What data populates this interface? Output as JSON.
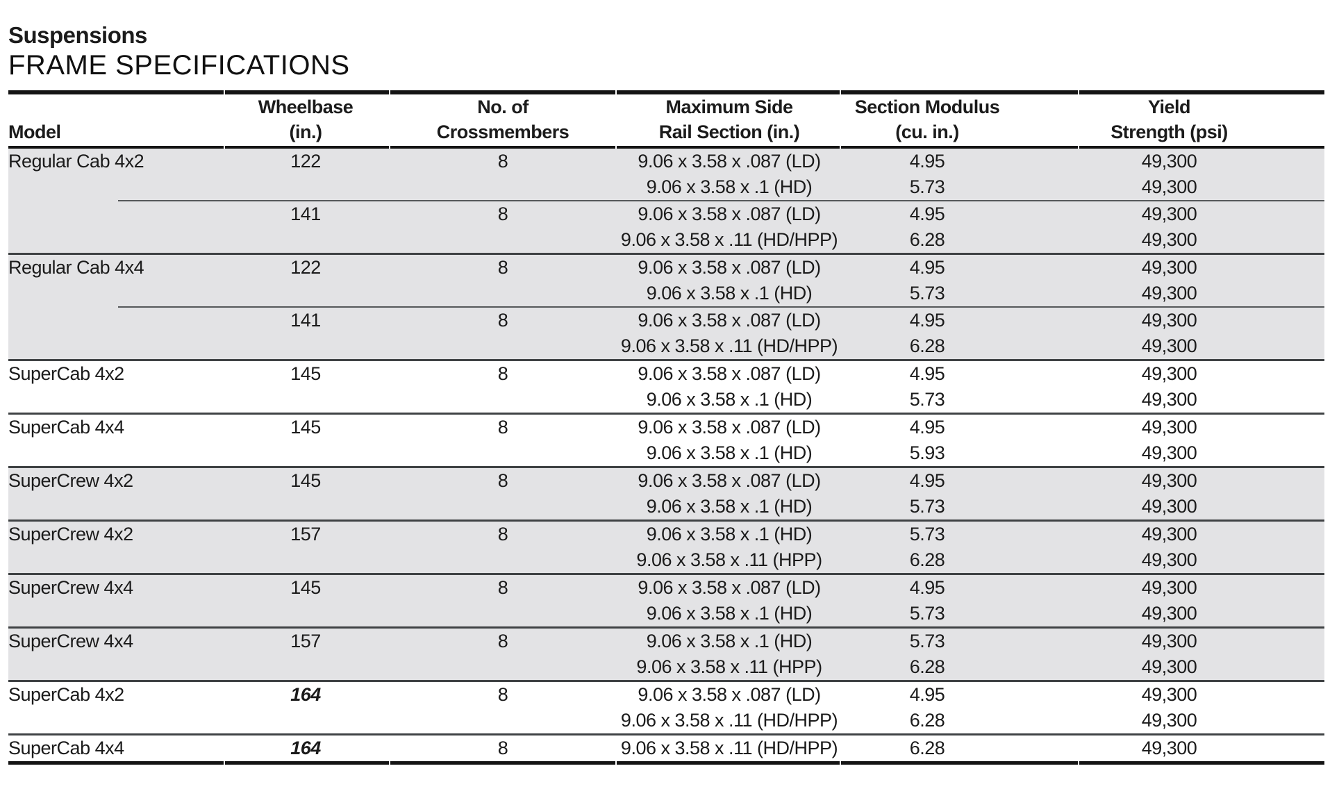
{
  "page": {
    "title": "Suspensions",
    "subtitle": "FRAME SPECIFICATIONS"
  },
  "table": {
    "headers": {
      "model": "Model",
      "wheelbase": [
        "Wheelbase",
        "(in.)"
      ],
      "crossmembers": [
        "No. of",
        "Crossmembers"
      ],
      "rail": [
        "Maximum Side",
        "Rail Section (in.)"
      ],
      "modulus": [
        "Section Modulus",
        "(cu. in.)"
      ],
      "yield": [
        "Yield",
        "Strength (psi)"
      ]
    },
    "colors": {
      "shaded_row": "#e3e3e5",
      "divider_line": "#55585a",
      "thick_rule": "#141414",
      "text": "#1b1b1b"
    },
    "groups": [
      {
        "model": "Regular Cab 4x2",
        "shaded": true,
        "subrows": [
          {
            "wheelbase": "122",
            "crossmembers": "8",
            "lines": [
              {
                "rail": "9.06 x 3.58 x .087 (LD)",
                "modulus": "4.95",
                "yield": "49,300"
              },
              {
                "rail": "9.06 x 3.58 x .1 (HD)",
                "modulus": "5.73",
                "yield": "49,300"
              }
            ]
          },
          {
            "wheelbase": "141",
            "crossmembers": "8",
            "lines": [
              {
                "rail": "9.06 x 3.58 x .087 (LD)",
                "modulus": "4.95",
                "yield": "49,300"
              },
              {
                "rail": "9.06 x 3.58 x .11 (HD/HPP)",
                "modulus": "6.28",
                "yield": "49,300"
              }
            ]
          }
        ]
      },
      {
        "model": "Regular Cab 4x4",
        "shaded": true,
        "subrows": [
          {
            "wheelbase": "122",
            "crossmembers": "8",
            "lines": [
              {
                "rail": "9.06 x 3.58 x .087 (LD)",
                "modulus": "4.95",
                "yield": "49,300"
              },
              {
                "rail": "9.06 x 3.58 x .1 (HD)",
                "modulus": "5.73",
                "yield": "49,300"
              }
            ]
          },
          {
            "wheelbase": "141",
            "crossmembers": "8",
            "lines": [
              {
                "rail": "9.06 x 3.58 x .087 (LD)",
                "modulus": "4.95",
                "yield": "49,300"
              },
              {
                "rail": "9.06 x 3.58 x .11 (HD/HPP)",
                "modulus": "6.28",
                "yield": "49,300"
              }
            ]
          }
        ]
      },
      {
        "model": "SuperCab 4x2",
        "shaded": false,
        "subrows": [
          {
            "wheelbase": "145",
            "crossmembers": "8",
            "lines": [
              {
                "rail": "9.06 x 3.58 x .087 (LD)",
                "modulus": "4.95",
                "yield": "49,300"
              },
              {
                "rail": "9.06 x 3.58 x .1 (HD)",
                "modulus": "5.73",
                "yield": "49,300"
              }
            ]
          }
        ]
      },
      {
        "model": "SuperCab 4x4",
        "shaded": false,
        "subrows": [
          {
            "wheelbase": "145",
            "crossmembers": "8",
            "lines": [
              {
                "rail": "9.06 x 3.58 x .087 (LD)",
                "modulus": "4.95",
                "yield": "49,300"
              },
              {
                "rail": "9.06 x 3.58 x .1 (HD)",
                "modulus": "5.93",
                "yield": "49,300"
              }
            ]
          }
        ]
      },
      {
        "model": "SuperCrew 4x2",
        "shaded": true,
        "subrows": [
          {
            "wheelbase": "145",
            "crossmembers": "8",
            "lines": [
              {
                "rail": "9.06 x 3.58 x .087 (LD)",
                "modulus": "4.95",
                "yield": "49,300"
              },
              {
                "rail": "9.06 x 3.58 x .1 (HD)",
                "modulus": "5.73",
                "yield": "49,300"
              }
            ]
          }
        ]
      },
      {
        "model": "SuperCrew 4x2",
        "shaded": true,
        "subrows": [
          {
            "wheelbase": "157",
            "crossmembers": "8",
            "lines": [
              {
                "rail": "9.06 x 3.58 x .1 (HD)",
                "modulus": "5.73",
                "yield": "49,300"
              },
              {
                "rail": "9.06 x 3.58 x .11 (HPP)",
                "modulus": "6.28",
                "yield": "49,300"
              }
            ]
          }
        ]
      },
      {
        "model": "SuperCrew 4x4",
        "shaded": true,
        "subrows": [
          {
            "wheelbase": "145",
            "crossmembers": "8",
            "lines": [
              {
                "rail": "9.06 x 3.58 x .087 (LD)",
                "modulus": "4.95",
                "yield": "49,300"
              },
              {
                "rail": "9.06 x 3.58 x .1 (HD)",
                "modulus": "5.73",
                "yield": "49,300"
              }
            ]
          }
        ]
      },
      {
        "model": "SuperCrew 4x4",
        "shaded": true,
        "subrows": [
          {
            "wheelbase": "157",
            "crossmembers": "8",
            "lines": [
              {
                "rail": "9.06 x 3.58 x .1 (HD)",
                "modulus": "5.73",
                "yield": "49,300"
              },
              {
                "rail": "9.06 x 3.58 x .11 (HPP)",
                "modulus": "6.28",
                "yield": "49,300"
              }
            ]
          }
        ]
      },
      {
        "model": "SuperCab 4x2",
        "shaded": false,
        "subrows": [
          {
            "wheelbase": "164",
            "wheelbase_style": "bold-italic",
            "crossmembers": "8",
            "lines": [
              {
                "rail": "9.06 x 3.58 x .087 (LD)",
                "modulus": "4.95",
                "yield": "49,300"
              },
              {
                "rail": "9.06 x 3.58 x .11 (HD/HPP)",
                "modulus": "6.28",
                "yield": "49,300"
              }
            ]
          }
        ]
      },
      {
        "model": "SuperCab 4x4",
        "shaded": false,
        "subrows": [
          {
            "wheelbase": "164",
            "wheelbase_style": "bold-italic",
            "crossmembers": "8",
            "lines": [
              {
                "rail": "9.06 x 3.58 x .11 (HD/HPP)",
                "modulus": "6.28",
                "yield": "49,300"
              }
            ]
          }
        ]
      }
    ]
  }
}
